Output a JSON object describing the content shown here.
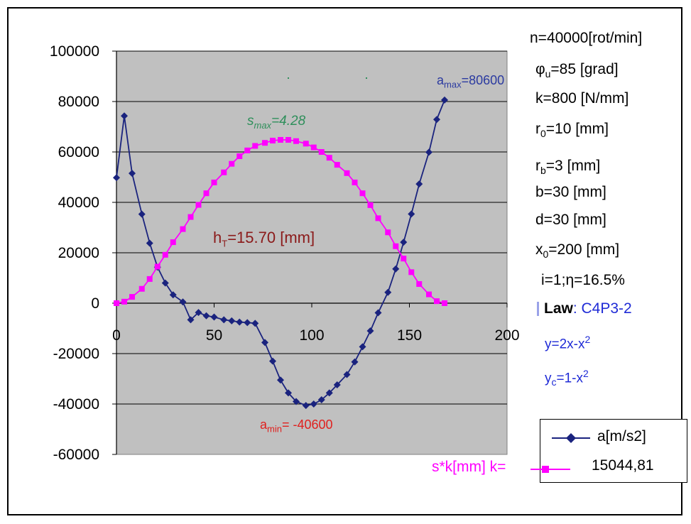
{
  "chart_data": {
    "type": "line",
    "xlim": [
      0,
      200
    ],
    "ylim": [
      -60000,
      100000
    ],
    "x_ticks": [
      "0",
      "50",
      "100",
      "150",
      "200"
    ],
    "y_ticks": [
      "100000",
      "80000",
      "60000",
      "40000",
      "20000",
      "0",
      "-20000",
      "-40000",
      "-60000"
    ],
    "grid": "horizontal",
    "series": [
      {
        "name": "a[m/s2]",
        "color": "#1a237e",
        "marker": "diamond",
        "x": [
          0,
          4,
          8,
          13,
          17,
          21,
          25,
          29,
          34,
          38,
          42,
          46,
          50,
          55,
          59,
          63,
          67,
          71,
          76,
          80,
          84,
          88,
          92,
          97,
          101,
          105,
          109,
          113,
          118,
          122,
          126,
          130,
          134,
          139,
          143,
          147,
          151,
          155,
          160,
          164,
          168
        ],
        "values": [
          49800,
          74300,
          51500,
          35300,
          23800,
          14300,
          8000,
          3300,
          500,
          -6600,
          -3700,
          -5000,
          -5500,
          -6600,
          -7000,
          -7500,
          -7700,
          -8000,
          -15600,
          -23000,
          -30500,
          -35600,
          -39000,
          -40600,
          -40000,
          -38300,
          -35600,
          -32400,
          -28300,
          -23300,
          -17300,
          -11000,
          -3800,
          4300,
          13600,
          24200,
          35400,
          47300,
          59900,
          72900,
          80600
        ]
      },
      {
        "name": "s*k[mm] k= 15044,81",
        "color": "#ff00ff",
        "marker": "square",
        "x": [
          0,
          4,
          8,
          13,
          17,
          21,
          25,
          29,
          34,
          38,
          42,
          46,
          50,
          55,
          59,
          63,
          67,
          71,
          76,
          80,
          84,
          88,
          92,
          97,
          101,
          105,
          109,
          113,
          118,
          122,
          126,
          130,
          134,
          139,
          143,
          147,
          151,
          155,
          160,
          164,
          168
        ],
        "values": [
          0,
          600,
          2500,
          5700,
          9600,
          14500,
          19200,
          24200,
          29400,
          34200,
          39000,
          43600,
          47900,
          51900,
          55300,
          58300,
          60600,
          62400,
          63600,
          64500,
          64800,
          64800,
          64300,
          63300,
          61800,
          60000,
          57700,
          54900,
          51600,
          47900,
          43600,
          38900,
          33700,
          28100,
          22600,
          17700,
          12300,
          7600,
          3500,
          800,
          0
        ]
      }
    ],
    "annotations": {
      "amax": {
        "base": "a",
        "sub": "max",
        "text": "=80600"
      },
      "amin": {
        "base": "a",
        "sub": "min",
        "text": "= -40600"
      },
      "smax": {
        "base": "s",
        "sub": "max",
        "text": "=4.28"
      },
      "ht": {
        "base": "h",
        "sub": "T",
        "text": "=15.70 [mm]"
      }
    }
  },
  "params": {
    "n": "n=40000[rot/min]",
    "phi_sym": "φ",
    "phi_sub": "u",
    "phi_text": "=85 [grad]",
    "k": "k=800 [N/mm]",
    "r0_base": "r",
    "r0_sub": "0",
    "r0_text": "=10 [mm]",
    "rb_base": "r",
    "rb_sub": "b",
    "rb_text": "=3 [mm]",
    "b": "b=30 [mm]",
    "d": "d=30 [mm]",
    "x0_base": "x",
    "x0_sub": "0",
    "x0_text": "=200 [mm]",
    "i_eta": "i=1;η=16.5%",
    "law_label": "Law",
    "law_value": ": C4P3-2",
    "y_eq_a": "y=2x-x",
    "y_eq_exp": "2",
    "yc_base": "y",
    "yc_sub": "c",
    "yc_text": "=1-x",
    "yc_exp": "2"
  },
  "legend": {
    "a_label": "a[m/s2]",
    "s_prefix": "s*k[mm] k=",
    "s_value": "15044,81"
  }
}
